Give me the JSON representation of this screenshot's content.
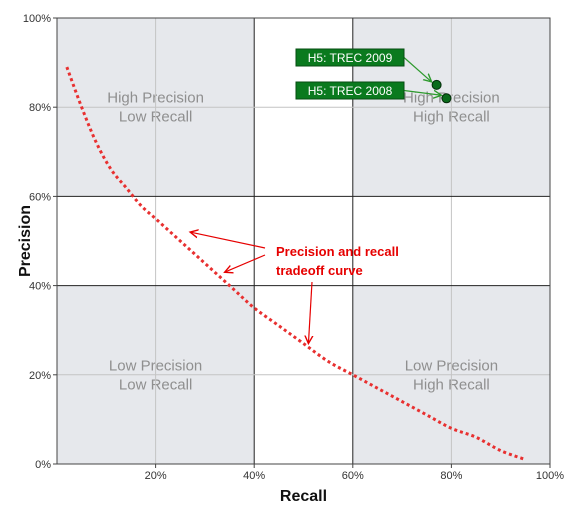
{
  "chart_data": {
    "type": "scatter",
    "xlabel": "Recall",
    "ylabel": "Precision",
    "xlim": [
      0,
      100
    ],
    "ylim": [
      0,
      100
    ],
    "x_ticks": [
      "20%",
      "40%",
      "60%",
      "80%",
      "100%"
    ],
    "y_ticks": [
      "0%",
      "20%",
      "40%",
      "60%",
      "80%",
      "100%"
    ],
    "quadrants": [
      {
        "lines": [
          "High Precision",
          "Low Recall"
        ],
        "x_range": [
          0,
          40
        ],
        "y_range": [
          60,
          100
        ]
      },
      {
        "lines": [
          "High Precision",
          "High Recall"
        ],
        "x_range": [
          60,
          100
        ],
        "y_range": [
          60,
          100
        ]
      },
      {
        "lines": [
          "Low Precision",
          "Low Recall"
        ],
        "x_range": [
          0,
          40
        ],
        "y_range": [
          0,
          40
        ]
      },
      {
        "lines": [
          "Low Precision",
          "High Recall"
        ],
        "x_range": [
          60,
          100
        ],
        "y_range": [
          0,
          40
        ]
      }
    ],
    "points": [
      {
        "label": "H5: TREC 2009",
        "x": 77,
        "y": 85
      },
      {
        "label": "H5: TREC 2008",
        "x": 79,
        "y": 82
      }
    ],
    "curve": {
      "annotation": [
        "Precision and recall",
        "tradeoff curve"
      ],
      "color": "#e83030",
      "x": [
        2,
        5,
        8,
        11,
        14,
        17,
        20,
        24,
        28,
        32,
        36,
        40,
        45,
        50,
        55,
        60,
        65,
        70,
        75,
        80,
        85,
        90,
        95
      ],
      "y": [
        89,
        80,
        72,
        66,
        62,
        58,
        55,
        51,
        47,
        43,
        39,
        35,
        31,
        27,
        23,
        20,
        17,
        14,
        11,
        8,
        6,
        3,
        1
      ]
    },
    "curve_arrow_targets": [
      {
        "x": 27,
        "y": 52
      },
      {
        "x": 34,
        "y": 43
      },
      {
        "x": 51,
        "y": 27
      }
    ],
    "colors": {
      "quadrant_fill": "#e6e8ec",
      "point_fill": "#0b6b1c",
      "label_fill": "#0a7a1e",
      "point_arrow": "#2e9a2e",
      "annotation": "#e60000"
    }
  }
}
